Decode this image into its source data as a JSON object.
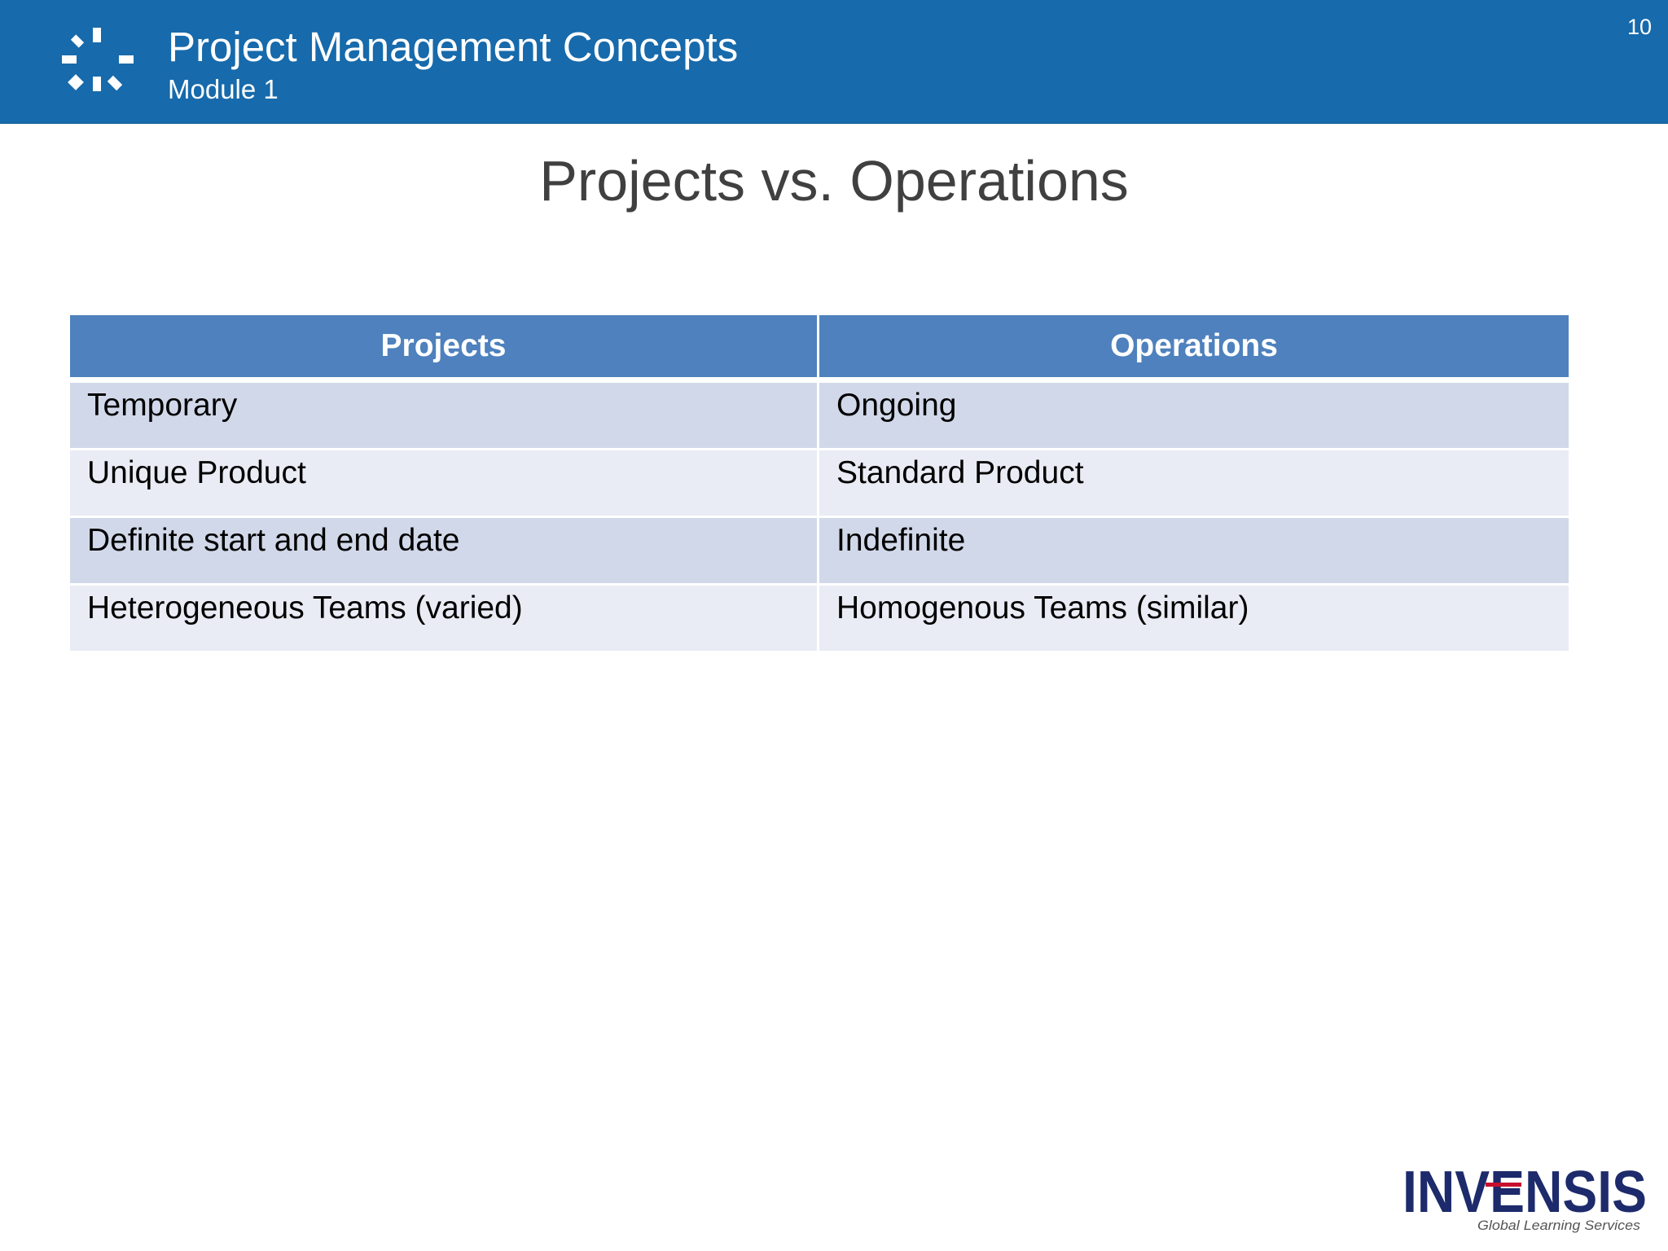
{
  "header": {
    "title": "Project Management Concepts",
    "subtitle": "Module 1",
    "page_number": "10",
    "logo_icon": "sunburst-icon",
    "background_color": "#176aab"
  },
  "slide": {
    "title": "Projects vs. Operations"
  },
  "table": {
    "columns": [
      "Projects",
      "Operations"
    ],
    "header_color": "#4e81bd",
    "row_colors": [
      "#d1d8e9",
      "#e9ecf4"
    ],
    "rows": [
      [
        "Temporary",
        "Ongoing"
      ],
      [
        "Unique Product",
        "Standard Product"
      ],
      [
        "Definite start and end date",
        "Indefinite"
      ],
      [
        "Heterogeneous Teams (varied)",
        "Homogenous Teams (similar)"
      ]
    ]
  },
  "footer": {
    "logo_text": "INVENSIS",
    "logo_tagline": "Global Learning Services",
    "logo_color": "#1d2a6b",
    "logo_accent": "#c8102e"
  }
}
